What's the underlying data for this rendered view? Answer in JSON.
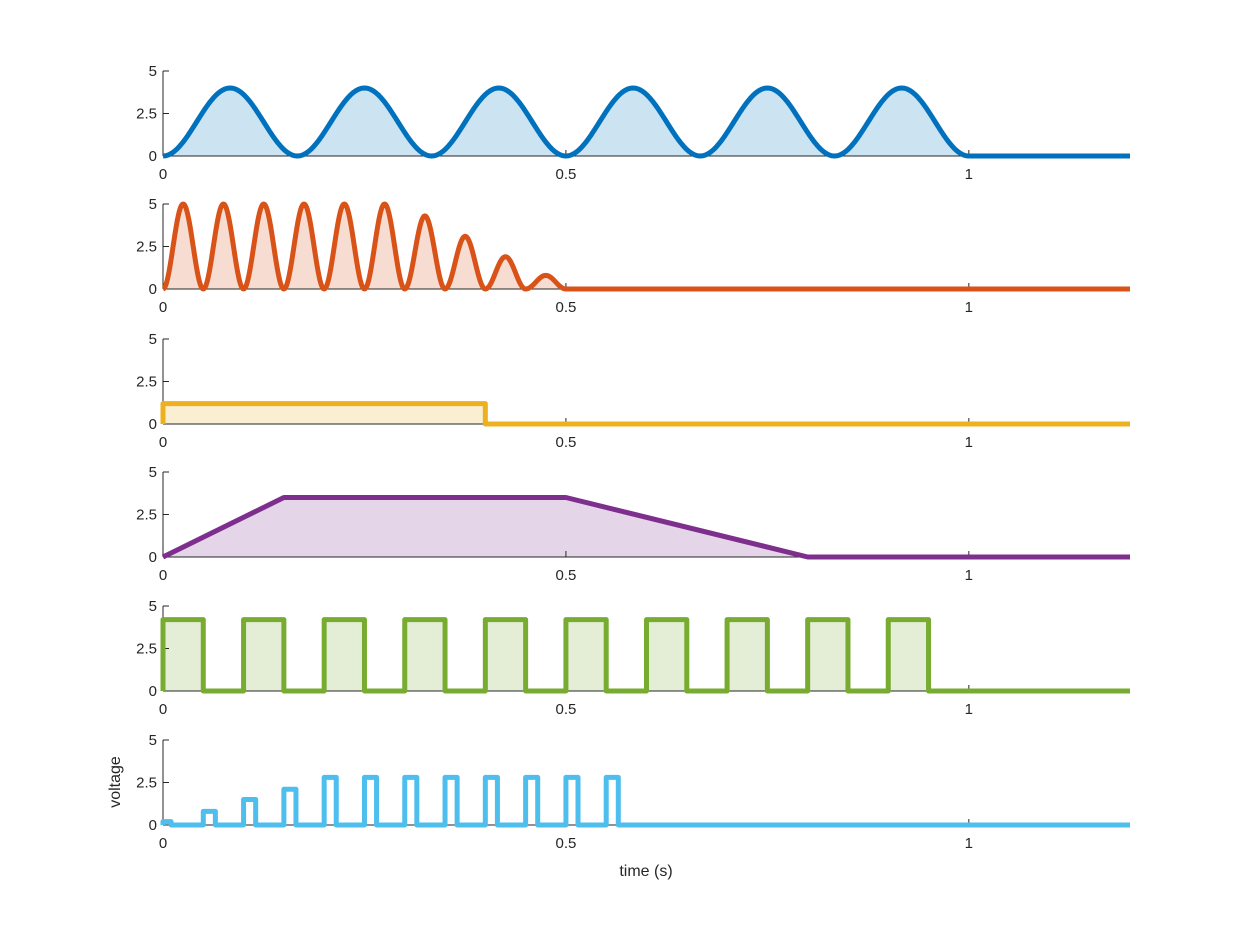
{
  "chart_data": {
    "type": "line",
    "xlabel": "time (s)",
    "ylabel": "voltage",
    "xlim": [
      0,
      1.2
    ],
    "ylim": [
      0,
      5
    ],
    "xticks": [
      0,
      0.5,
      1
    ],
    "xtick_labels": [
      "0",
      "0.5",
      "1"
    ],
    "yticks": [
      0,
      2.5,
      5
    ],
    "ytick_labels": [
      "0",
      "2.5",
      "5"
    ],
    "fill_under": true,
    "panels": [
      {
        "color": "#0072BD",
        "x": [
          0,
          0.0833,
          0.1667,
          0.25,
          0.3333,
          0.4167,
          0.5,
          0.5833,
          0.6667,
          0.75,
          0.8333,
          0.9167,
          1.0,
          1.2
        ],
        "y": [
          0,
          4,
          0,
          4,
          0,
          4,
          0,
          4,
          0,
          4,
          0,
          4,
          0,
          0
        ],
        "curve": "cosine-peaks"
      },
      {
        "color": "#D95319",
        "x": [
          0,
          0.025,
          0.05,
          0.075,
          0.1,
          0.125,
          0.15,
          0.175,
          0.2,
          0.225,
          0.25,
          0.275,
          0.3,
          0.325,
          0.35,
          0.375,
          0.4,
          0.425,
          0.45,
          0.475,
          0.5,
          1.2
        ],
        "y": [
          0,
          5,
          0,
          5,
          0,
          5,
          0,
          5,
          0,
          5,
          0,
          5,
          0,
          4.3,
          0,
          3.1,
          0,
          1.9,
          0,
          0.8,
          0,
          0
        ],
        "curve": "cosine-peaks"
      },
      {
        "color": "#EDB120",
        "x": [
          0,
          0,
          0.4,
          0.4,
          1.2
        ],
        "y": [
          0,
          1.2,
          1.2,
          0,
          0
        ],
        "curve": "linear"
      },
      {
        "color": "#7E2F8E",
        "x": [
          0,
          0.15,
          0.5,
          0.8,
          1.2
        ],
        "y": [
          0,
          3.5,
          3.5,
          0,
          0
        ],
        "curve": "linear"
      },
      {
        "color": "#77AC30",
        "x": [
          0,
          0,
          0.05,
          0.05,
          0.1,
          0.1,
          0.15,
          0.15,
          0.2,
          0.2,
          0.25,
          0.25,
          0.3,
          0.3,
          0.35,
          0.35,
          0.4,
          0.4,
          0.45,
          0.45,
          0.5,
          0.5,
          0.55,
          0.55,
          0.6,
          0.6,
          0.65,
          0.65,
          0.7,
          0.7,
          0.75,
          0.75,
          0.8,
          0.8,
          0.85,
          0.85,
          0.9,
          0.9,
          0.95,
          0.95,
          1.2
        ],
        "y": [
          0,
          4.2,
          4.2,
          0,
          0,
          4.2,
          4.2,
          0,
          0,
          4.2,
          4.2,
          0,
          0,
          4.2,
          4.2,
          0,
          0,
          4.2,
          4.2,
          0,
          0,
          4.2,
          4.2,
          0,
          0,
          4.2,
          4.2,
          0,
          0,
          4.2,
          4.2,
          0,
          0,
          4.2,
          4.2,
          0,
          0,
          4.2,
          4.2,
          0,
          0
        ],
        "curve": "linear"
      },
      {
        "color": "#4DBEEE",
        "x": [
          0,
          0,
          0.01,
          0.01,
          0.05,
          0.05,
          0.065,
          0.065,
          0.1,
          0.1,
          0.115,
          0.115,
          0.15,
          0.15,
          0.165,
          0.165,
          0.2,
          0.2,
          0.215,
          0.215,
          0.25,
          0.25,
          0.265,
          0.265,
          0.3,
          0.3,
          0.315,
          0.315,
          0.35,
          0.35,
          0.365,
          0.365,
          0.4,
          0.4,
          0.415,
          0.415,
          0.45,
          0.45,
          0.465,
          0.465,
          0.5,
          0.5,
          0.515,
          0.515,
          0.55,
          0.55,
          0.565,
          0.565,
          1.2
        ],
        "y": [
          0,
          0.2,
          0.2,
          0,
          0,
          0.8,
          0.8,
          0,
          0,
          1.5,
          1.5,
          0,
          0,
          2.1,
          2.1,
          0,
          0,
          2.8,
          2.8,
          0,
          0,
          2.8,
          2.8,
          0,
          0,
          2.8,
          2.8,
          0,
          0,
          2.8,
          2.8,
          0,
          0,
          2.8,
          2.8,
          0,
          0,
          2.8,
          2.8,
          0,
          0,
          2.8,
          2.8,
          0,
          0,
          2.8,
          2.8,
          0,
          0
        ],
        "curve": "linear",
        "fill_under": false
      }
    ]
  }
}
